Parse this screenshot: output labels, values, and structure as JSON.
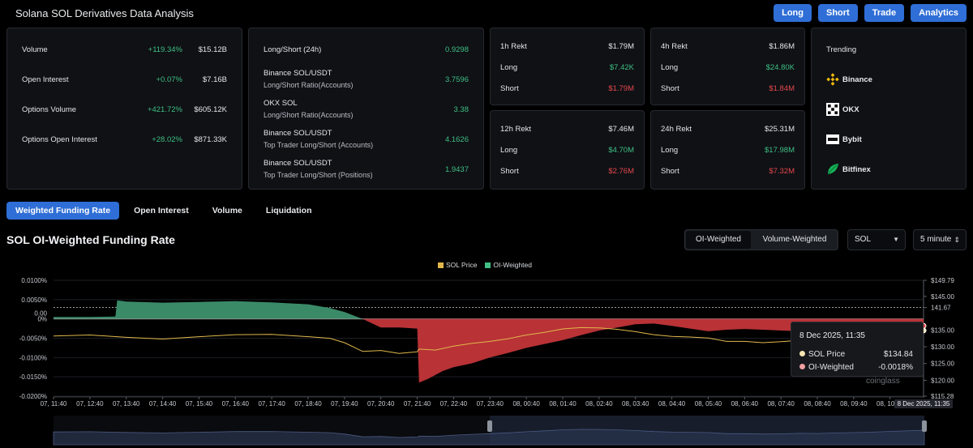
{
  "header": {
    "title": "Solana SOL Derivatives Data Analysis",
    "buttons": [
      "Long",
      "Short",
      "Trade",
      "Analytics"
    ]
  },
  "stats": [
    {
      "label": "Volume",
      "change": "+119.34%",
      "value": "$15.12B"
    },
    {
      "label": "Open Interest",
      "change": "+0.07%",
      "value": "$7.16B"
    },
    {
      "label": "Options Volume",
      "change": "+421.72%",
      "value": "$605.12K"
    },
    {
      "label": "Options Open Interest",
      "change": "+28.02%",
      "value": "$871.33K"
    }
  ],
  "long_short": [
    {
      "line1": "Long/Short (24h)",
      "line2": "",
      "value": "0.9298"
    },
    {
      "line1": "Binance SOL/USDT",
      "line2": "Long/Short Ratio(Accounts)",
      "value": "3.7596"
    },
    {
      "line1": "OKX SOL",
      "line2": "Long/Short Ratio(Accounts)",
      "value": "3.38"
    },
    {
      "line1": "Binance SOL/USDT",
      "line2": "Top Trader Long/Short (Accounts)",
      "value": "4.1626"
    },
    {
      "line1": "Binance SOL/USDT",
      "line2": "Top Trader Long/Short (Positions)",
      "value": "1.9437"
    }
  ],
  "rekt": [
    {
      "title": "1h Rekt",
      "total": "$1.79M",
      "long_label": "Long",
      "long": "$7.42K",
      "short_label": "Short",
      "short": "$1.79M"
    },
    {
      "title": "4h Rekt",
      "total": "$1.86M",
      "long_label": "Long",
      "long": "$24.80K",
      "short_label": "Short",
      "short": "$1.84M"
    },
    {
      "title": "12h Rekt",
      "total": "$7.46M",
      "long_label": "Long",
      "long": "$4.70M",
      "short_label": "Short",
      "short": "$2.76M"
    },
    {
      "title": "24h Rekt",
      "total": "$25.31M",
      "long_label": "Long",
      "long": "$17.98M",
      "short_label": "Short",
      "short": "$7.32M"
    }
  ],
  "trending": {
    "title": "Trending",
    "exchanges": [
      {
        "name": "Binance",
        "icon": "binance-icon"
      },
      {
        "name": "OKX",
        "icon": "okx-icon"
      },
      {
        "name": "Bybit",
        "icon": "bybit-icon"
      },
      {
        "name": "Bitfinex",
        "icon": "bitfinex-icon"
      }
    ]
  },
  "tabs": [
    "Weighted Funding Rate",
    "Open Interest",
    "Volume",
    "Liquidation"
  ],
  "section_title": "SOL OI-Weighted Funding Rate",
  "weighting": {
    "options": [
      "OI-Weighted",
      "Volume-Weighted"
    ],
    "selected": "OI-Weighted"
  },
  "symbol_select": "SOL",
  "interval_select": "5 minute",
  "colors": {
    "accent": "#2f6ed6",
    "positive": "#3fbf83",
    "negative": "#e5484d",
    "price": "#e0b84a",
    "funding_pos": "#3a8a68",
    "funding_neg": "#b83236"
  },
  "tooltip": {
    "date": "8 Dec 2025, 11:35",
    "rows": [
      {
        "label": "SOL Price",
        "value": "$134.84"
      },
      {
        "label": "OI-Weighted",
        "value": "-0.0018%"
      }
    ]
  },
  "watermark": "coinglass",
  "chart_data": {
    "type": "area",
    "legend": [
      "SOL Price",
      "OI-Weighted"
    ],
    "legend_position": "top-center",
    "x_ticks": [
      "07, 11:40",
      "07, 12:40",
      "07, 13:40",
      "07, 14:40",
      "07, 15:40",
      "07, 16:40",
      "07, 17:40",
      "07, 18:40",
      "07, 19:40",
      "07, 20:40",
      "07, 21:40",
      "07, 22:40",
      "07, 23:40",
      "08, 00:40",
      "08, 01:40",
      "08, 02:40",
      "08, 03:40",
      "08, 04:40",
      "08, 05:40",
      "08, 06:40",
      "08, 07:40",
      "08, 08:40",
      "08, 09:40",
      "08, 10:40"
    ],
    "x_tick_last": "8 Dec 2025, 11:35",
    "left_axis": {
      "ticks": [
        "0.0100%",
        "0.0050%",
        "0.00",
        "0%",
        "-0.0050%",
        "-0.0100%",
        "-0.0150%",
        "-0.0200%"
      ],
      "values": [
        0.01,
        0.005,
        0.0015,
        0,
        -0.005,
        -0.01,
        -0.015,
        -0.02
      ],
      "ylim": [
        -0.02,
        0.01
      ]
    },
    "right_axis": {
      "ticks": [
        "$149.79",
        "$145.00",
        "141.67",
        "$135.00",
        "$130.00",
        "$125.00",
        "$120.00",
        "$115.28"
      ],
      "values": [
        149.79,
        145,
        141.67,
        135,
        130,
        125,
        120,
        115.28
      ],
      "ylim": [
        115.28,
        149.79
      ]
    },
    "series": [
      {
        "name": "OI-Weighted",
        "unit": "%",
        "t": [
          0,
          1,
          1.7,
          1.75,
          2,
          3,
          4,
          5,
          6,
          7,
          7.6,
          8,
          8.5,
          9,
          9.5,
          10,
          10.05,
          10.3,
          10.7,
          11,
          11.5,
          12,
          12.5,
          13,
          13.5,
          14,
          14.5,
          15,
          15.5,
          16,
          16.5,
          17,
          17.5,
          18,
          18.5,
          19,
          19.5,
          20,
          20.5,
          21,
          21.5,
          22,
          22.5,
          23,
          23.92
        ],
        "values": [
          0.0005,
          0.0005,
          0.0006,
          0.0048,
          0.0045,
          0.0042,
          0.0044,
          0.0046,
          0.0043,
          0.0038,
          0.0028,
          0.0018,
          0.0,
          -0.0022,
          -0.0022,
          -0.0025,
          -0.0165,
          -0.0155,
          -0.0135,
          -0.0125,
          -0.0115,
          -0.01,
          -0.0088,
          -0.0075,
          -0.0065,
          -0.0055,
          -0.0042,
          -0.003,
          -0.0022,
          -0.0014,
          -0.0012,
          -0.0018,
          -0.0025,
          -0.0032,
          -0.0028,
          -0.0026,
          -0.0028,
          -0.003,
          -0.0032,
          -0.0022,
          -0.002,
          -0.0025,
          -0.0028,
          -0.0022,
          -0.0018
        ]
      },
      {
        "name": "SOL Price",
        "unit": "$",
        "t": [
          0,
          1,
          2,
          3,
          4,
          5,
          6,
          7,
          7.6,
          8,
          8.5,
          9,
          9.5,
          10,
          10.05,
          10.5,
          11,
          11.5,
          12,
          12.5,
          13,
          13.5,
          14,
          14.5,
          15,
          15.5,
          16,
          16.5,
          17,
          17.5,
          18,
          18.5,
          19,
          19.5,
          20,
          20.5,
          21,
          21.5,
          22,
          22.5,
          23,
          23.92
        ],
        "values": [
          133.2,
          133.5,
          132.8,
          132.3,
          133.0,
          133.6,
          133.7,
          133.0,
          132.5,
          131.2,
          128.6,
          128.9,
          128.0,
          128.5,
          129.3,
          129.0,
          130.2,
          131.0,
          131.6,
          132.4,
          133.5,
          134.3,
          135.3,
          135.7,
          135.6,
          135.2,
          134.5,
          133.6,
          133.1,
          132.9,
          132.6,
          131.6,
          131.6,
          131.2,
          131.5,
          131.9,
          131.8,
          132.3,
          132.6,
          133.1,
          133.8,
          134.84
        ]
      }
    ]
  }
}
